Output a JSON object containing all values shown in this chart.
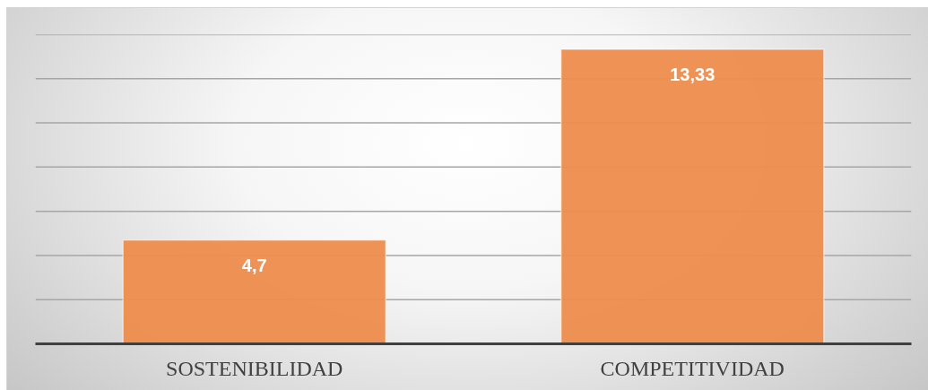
{
  "chart_data": {
    "type": "bar",
    "categories": [
      "SOSTENIBILIDAD",
      "COMPETITIVIDAD"
    ],
    "values": [
      4.7,
      13.33
    ],
    "color": "#ed8d4c",
    "value_labels": [
      "4,7",
      "13,33"
    ],
    "ylim": [
      0,
      14
    ],
    "yticks": [
      {
        "value": 0,
        "label": null
      },
      {
        "value": 2,
        "label": null
      },
      {
        "value": 4,
        "label": null
      },
      {
        "value": 6,
        "label": null
      },
      {
        "value": 8,
        "label": null
      },
      {
        "value": 10,
        "label": null
      },
      {
        "value": 12,
        "label": null
      },
      {
        "value": 14,
        "label": null
      }
    ],
    "grid": "y",
    "tick_labels": "x"
  }
}
